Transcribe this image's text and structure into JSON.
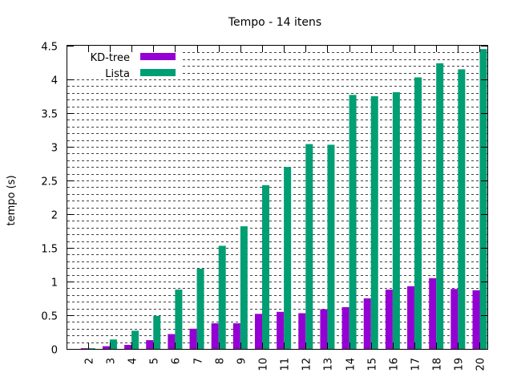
{
  "chart_data": {
    "type": "bar",
    "title": "Tempo - 14 itens",
    "xlabel": "",
    "ylabel": "tempo (s)",
    "ylim": [
      0,
      4.5
    ],
    "yticks": [
      "0",
      "0.5",
      "1",
      "1.5",
      "2",
      "2.5",
      "3",
      "3.5",
      "4",
      "4.5"
    ],
    "grid": "dashed horizontal",
    "legend_position": "top-left",
    "categories": [
      "2",
      "3",
      "4",
      "5",
      "6",
      "7",
      "8",
      "9",
      "10",
      "11",
      "12",
      "13",
      "14",
      "15",
      "16",
      "17",
      "18",
      "19",
      "20"
    ],
    "series": [
      {
        "name": "KD-tree",
        "color": "#9400d3",
        "values": [
          0.01,
          0.04,
          0.06,
          0.13,
          0.22,
          0.3,
          0.38,
          0.38,
          0.52,
          0.55,
          0.53,
          0.59,
          0.62,
          0.75,
          0.88,
          0.93,
          1.05,
          0.89,
          0.87
        ]
      },
      {
        "name": "Lista",
        "color": "#009e73",
        "values": [
          0.01,
          0.14,
          0.27,
          0.49,
          0.88,
          1.19,
          1.53,
          1.82,
          2.43,
          2.7,
          3.04,
          3.03,
          3.77,
          3.75,
          3.81,
          4.03,
          4.24,
          4.15,
          4.45
        ]
      }
    ]
  }
}
